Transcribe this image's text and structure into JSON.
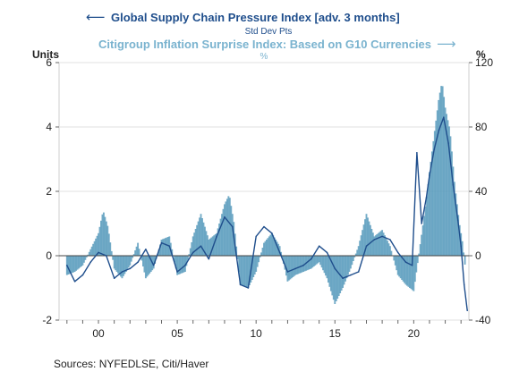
{
  "chart_data": {
    "type": "line",
    "title_left": "Global Supply Chain Pressure Index [adv. 3 months]",
    "subtitle_left": "Std Dev Pts",
    "title_right": "Citigroup Inflation Surprise Index: Based on G10 Currencies",
    "subtitle_right": "%",
    "left_axis_label": "Units",
    "right_axis_label": "%",
    "left_ylim": [
      -2,
      6
    ],
    "left_ticks": [
      "6",
      "4",
      "2",
      "0",
      "-2"
    ],
    "right_ylim": [
      -40,
      120
    ],
    "right_ticks": [
      "120",
      "80",
      "40",
      "0",
      "-40"
    ],
    "x_ticks": [
      "00",
      "05",
      "10",
      "15",
      "20"
    ],
    "x_tick_years": [
      2000,
      2005,
      2010,
      2015,
      2020
    ],
    "xlim": [
      1997.5,
      2023.5
    ],
    "grid": true,
    "source": "Sources:  NYFEDLSE, Citi/Haver",
    "colors": {
      "gscpi_line": "#1f4e8c",
      "citi_area": "#5b9cbd",
      "grid": "#e0e0e0"
    },
    "series": [
      {
        "name": "Global Supply Chain Pressure Index [adv. 3 months]",
        "axis": "left",
        "style": "line",
        "x": [
          1998.0,
          1998.5,
          1999.0,
          1999.5,
          2000.0,
          2000.5,
          2001.0,
          2001.5,
          2002.0,
          2002.5,
          2003.0,
          2003.5,
          2004.0,
          2004.5,
          2005.0,
          2005.5,
          2006.0,
          2006.5,
          2007.0,
          2007.5,
          2008.0,
          2008.5,
          2009.0,
          2009.5,
          2010.0,
          2010.5,
          2011.0,
          2011.5,
          2012.0,
          2012.5,
          2013.0,
          2013.5,
          2014.0,
          2014.5,
          2015.0,
          2015.5,
          2016.0,
          2016.5,
          2017.0,
          2017.5,
          2018.0,
          2018.5,
          2019.0,
          2019.5,
          2019.9,
          2020.2,
          2020.5,
          2020.8,
          2021.0,
          2021.3,
          2021.6,
          2021.9,
          2022.2,
          2022.5,
          2022.8,
          2023.0,
          2023.2,
          2023.4
        ],
        "values": [
          -0.3,
          -0.8,
          -0.6,
          -0.2,
          0.1,
          0.0,
          -0.7,
          -0.5,
          -0.4,
          -0.2,
          0.2,
          -0.3,
          0.4,
          0.3,
          -0.5,
          -0.3,
          0.1,
          0.3,
          -0.1,
          0.6,
          1.2,
          0.9,
          -0.9,
          -1.0,
          0.6,
          0.9,
          0.7,
          0.1,
          -0.5,
          -0.4,
          -0.3,
          -0.1,
          0.3,
          0.1,
          -0.4,
          -0.7,
          -0.6,
          -0.5,
          0.3,
          0.5,
          0.6,
          0.5,
          0.1,
          -0.2,
          -0.3,
          3.2,
          1.0,
          1.8,
          2.5,
          3.3,
          3.9,
          4.3,
          3.5,
          2.2,
          1.1,
          0.3,
          -0.9,
          -1.7
        ]
      },
      {
        "name": "Citigroup Inflation Surprise Index: Based on G10 Currencies",
        "axis": "right",
        "style": "area",
        "x": [
          1998.0,
          1998.5,
          1999.0,
          1999.5,
          2000.0,
          2000.3,
          2000.6,
          2001.0,
          2001.5,
          2002.0,
          2002.5,
          2003.0,
          2003.5,
          2004.0,
          2004.5,
          2005.0,
          2005.5,
          2006.0,
          2006.5,
          2007.0,
          2007.5,
          2008.0,
          2008.3,
          2008.6,
          2009.0,
          2009.5,
          2010.0,
          2010.5,
          2011.0,
          2011.5,
          2012.0,
          2012.5,
          2013.0,
          2013.5,
          2014.0,
          2014.5,
          2015.0,
          2015.5,
          2016.0,
          2016.5,
          2017.0,
          2017.5,
          2018.0,
          2018.5,
          2019.0,
          2019.5,
          2020.0,
          2020.4,
          2020.8,
          2021.0,
          2021.3,
          2021.6,
          2021.8,
          2022.0,
          2022.3,
          2022.6,
          2022.9,
          2023.1,
          2023.3
        ],
        "values": [
          -12,
          -10,
          -6,
          4,
          14,
          28,
          18,
          -8,
          -14,
          -6,
          8,
          -14,
          -8,
          10,
          12,
          -12,
          -10,
          12,
          26,
          10,
          14,
          32,
          38,
          20,
          -18,
          -20,
          -10,
          8,
          14,
          6,
          -16,
          -12,
          -10,
          -8,
          -4,
          -14,
          -30,
          -20,
          -8,
          6,
          26,
          12,
          16,
          6,
          -12,
          -18,
          -22,
          6,
          34,
          52,
          75,
          98,
          108,
          92,
          78,
          44,
          20,
          8,
          -10
        ]
      }
    ]
  }
}
